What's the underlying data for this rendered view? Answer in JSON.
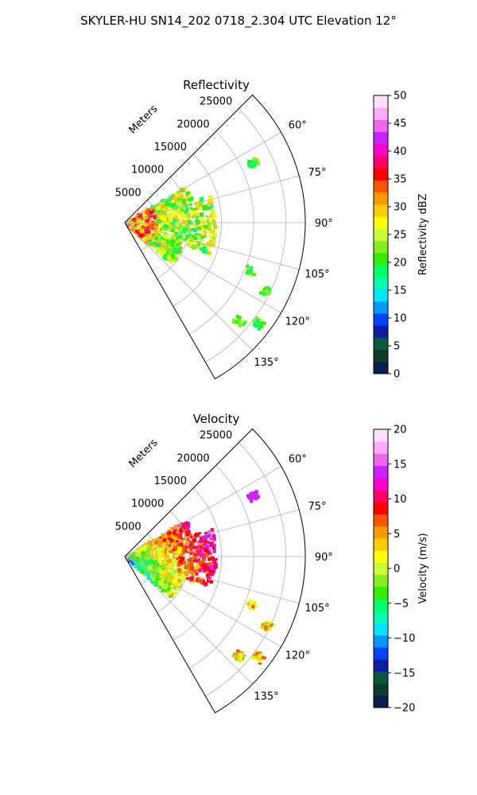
{
  "figure_title": "SKYLER-HU  SN14_202  0718_2.304 UTC Elevation 12°",
  "chart_data": [
    {
      "type": "heatmap",
      "projection": "polar-sector",
      "title": "Reflectivity",
      "range_label": "Meters",
      "range_ticks": [
        5000,
        10000,
        15000,
        20000,
        25000
      ],
      "range_tick_labels": [
        "5000",
        "10000",
        "15000",
        "20000",
        "25000"
      ],
      "range_max": 28000,
      "azimuth_range": [
        45,
        150
      ],
      "azimuth_ticks": [
        60,
        75,
        90,
        105,
        120,
        135
      ],
      "azimuth_tick_labels": [
        "60°",
        "75°",
        "90°",
        "105°",
        "120°",
        "135°"
      ],
      "grid": true,
      "colorbar": {
        "label": "Reflectivity dBZ",
        "min": 0,
        "max": 50,
        "ticks": [
          0,
          5,
          10,
          15,
          20,
          25,
          30,
          35,
          40,
          45,
          50
        ],
        "tick_labels": [
          "0",
          "5",
          "10",
          "15",
          "20",
          "25",
          "30",
          "35",
          "40",
          "45",
          "50"
        ]
      },
      "colors": [
        "#0a1f4e",
        "#0b3d2a",
        "#0a5a3a",
        "#0d1fa0",
        "#0044ff",
        "#0099ff",
        "#00e5ff",
        "#00ffb0",
        "#00ff66",
        "#33ee00",
        "#88ee22",
        "#ccff33",
        "#ffff00",
        "#ffcc00",
        "#ff9900",
        "#ff5500",
        "#ff0000",
        "#ff0066",
        "#ff00cc",
        "#cc22ff",
        "#ee66ee",
        "#ffaaff",
        "#ffe0ff"
      ]
    },
    {
      "type": "heatmap",
      "projection": "polar-sector",
      "title": "Velocity",
      "range_label": "Meters",
      "range_ticks": [
        5000,
        10000,
        15000,
        20000,
        25000
      ],
      "range_tick_labels": [
        "5000",
        "10000",
        "15000",
        "20000",
        "25000"
      ],
      "range_max": 28000,
      "azimuth_range": [
        45,
        150
      ],
      "azimuth_ticks": [
        60,
        75,
        90,
        105,
        120,
        135
      ],
      "azimuth_tick_labels": [
        "60°",
        "75°",
        "90°",
        "105°",
        "120°",
        "135°"
      ],
      "grid": true,
      "colorbar": {
        "label": "Velocity (m/s)",
        "min": -20,
        "max": 20,
        "ticks": [
          -20,
          -15,
          -10,
          -5,
          0,
          5,
          10,
          15,
          20
        ],
        "tick_labels": [
          "−20",
          "−15",
          "−10",
          "−5",
          "0",
          "5",
          "10",
          "15",
          "20"
        ]
      },
      "colors": [
        "#0a1f4e",
        "#0b3d2a",
        "#0a5a3a",
        "#0d1fa0",
        "#0044ff",
        "#0099ff",
        "#00e5ff",
        "#00ffb0",
        "#00ff66",
        "#33ee00",
        "#88ee22",
        "#ccff33",
        "#ffff00",
        "#ffcc00",
        "#ff9900",
        "#ff5500",
        "#ff0000",
        "#ff0066",
        "#ff00cc",
        "#cc22ff",
        "#ee66ee",
        "#ffaaff",
        "#ffe0ff"
      ]
    }
  ]
}
